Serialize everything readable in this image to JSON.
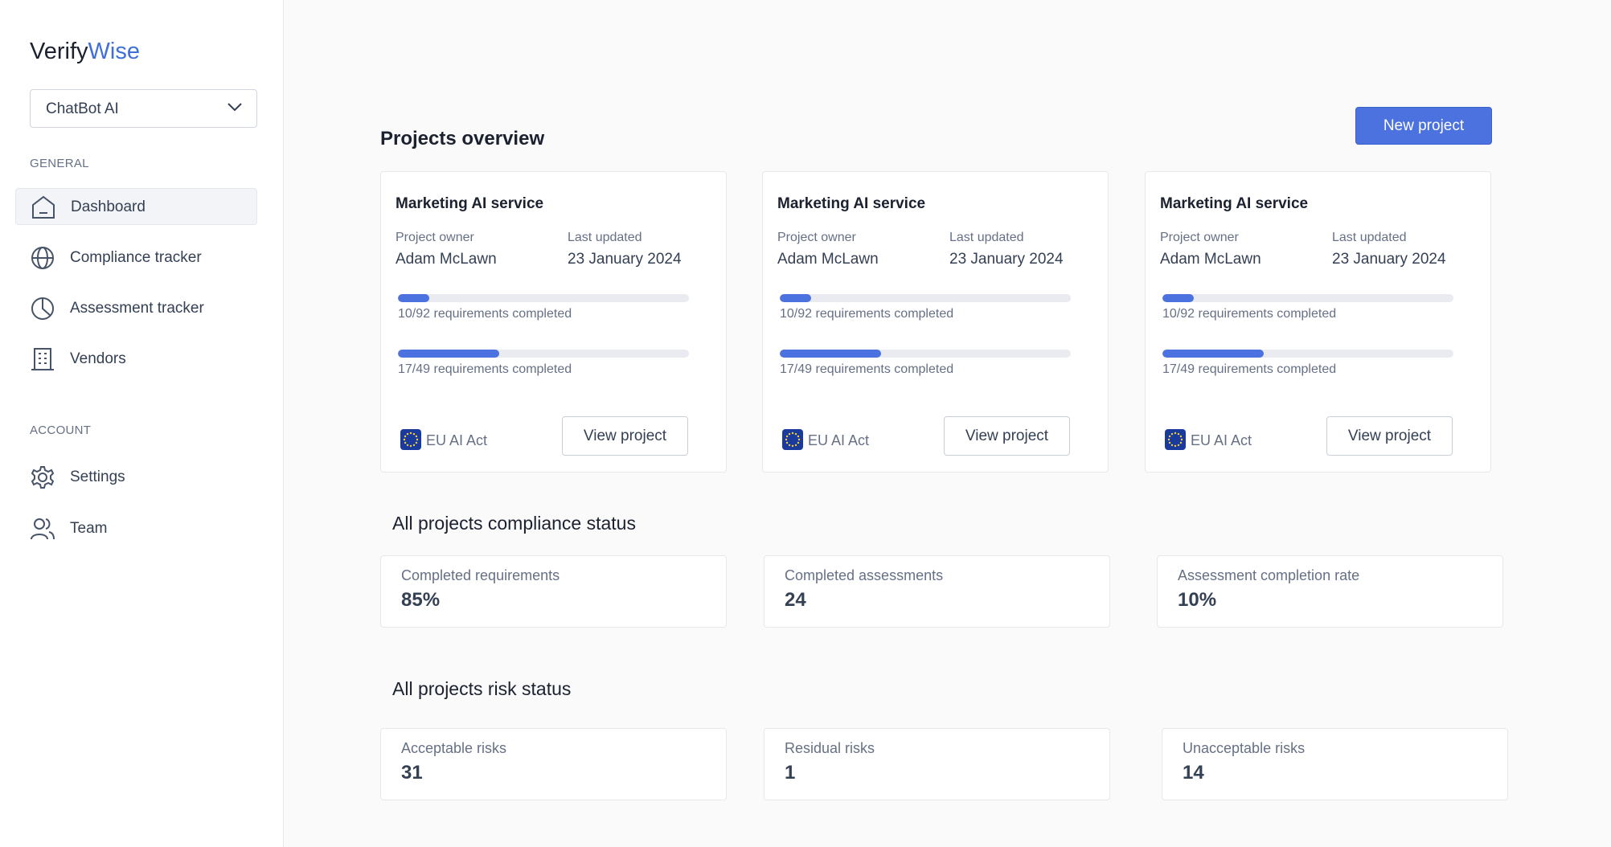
{
  "logo": {
    "part1": "Verify",
    "part2": "Wise"
  },
  "project_select": "ChatBot AI",
  "nav": {
    "general_heading": "GENERAL",
    "general": [
      "Dashboard",
      "Compliance tracker",
      "Assessment tracker",
      "Vendors"
    ],
    "account_heading": "ACCOUNT",
    "account": [
      "Settings",
      "Team"
    ]
  },
  "main": {
    "title": "Projects overview",
    "new_project": "New project",
    "projects": [
      {
        "name": "Marketing AI service",
        "owner_label": "Project owner",
        "owner": "Adam McLawn",
        "updated_label": "Last updated",
        "updated": "23 January 2024",
        "progress": [
          {
            "completed": 10,
            "total": 92,
            "label": "10/92 requirements completed"
          },
          {
            "completed": 17,
            "total": 49,
            "label": "17/49 requirements completed"
          }
        ],
        "framework": "EU AI Act",
        "button": "View project"
      },
      {
        "name": "Marketing AI service",
        "owner_label": "Project owner",
        "owner": "Adam McLawn",
        "updated_label": "Last updated",
        "updated": "23 January 2024",
        "progress": [
          {
            "completed": 10,
            "total": 92,
            "label": "10/92 requirements completed"
          },
          {
            "completed": 17,
            "total": 49,
            "label": "17/49 requirements completed"
          }
        ],
        "framework": "EU AI Act",
        "button": "View project"
      },
      {
        "name": "Marketing AI service",
        "owner_label": "Project owner",
        "owner": "Adam McLawn",
        "updated_label": "Last updated",
        "updated": "23 January 2024",
        "progress": [
          {
            "completed": 10,
            "total": 92,
            "label": "10/92 requirements completed"
          },
          {
            "completed": 17,
            "total": 49,
            "label": "17/49 requirements completed"
          }
        ],
        "framework": "EU AI Act",
        "button": "View project"
      }
    ],
    "compliance": {
      "title": "All projects compliance status",
      "stats": [
        {
          "label": "Completed requirements",
          "value": "85%"
        },
        {
          "label": "Completed assessments",
          "value": "24"
        },
        {
          "label": "Assessment completion rate",
          "value": "10%"
        }
      ]
    },
    "risk": {
      "title": "All projects risk status",
      "stats": [
        {
          "label": "Acceptable risks",
          "value": "31"
        },
        {
          "label": "Residual risks",
          "value": "1"
        },
        {
          "label": "Unacceptable risks",
          "value": "14"
        }
      ]
    }
  }
}
